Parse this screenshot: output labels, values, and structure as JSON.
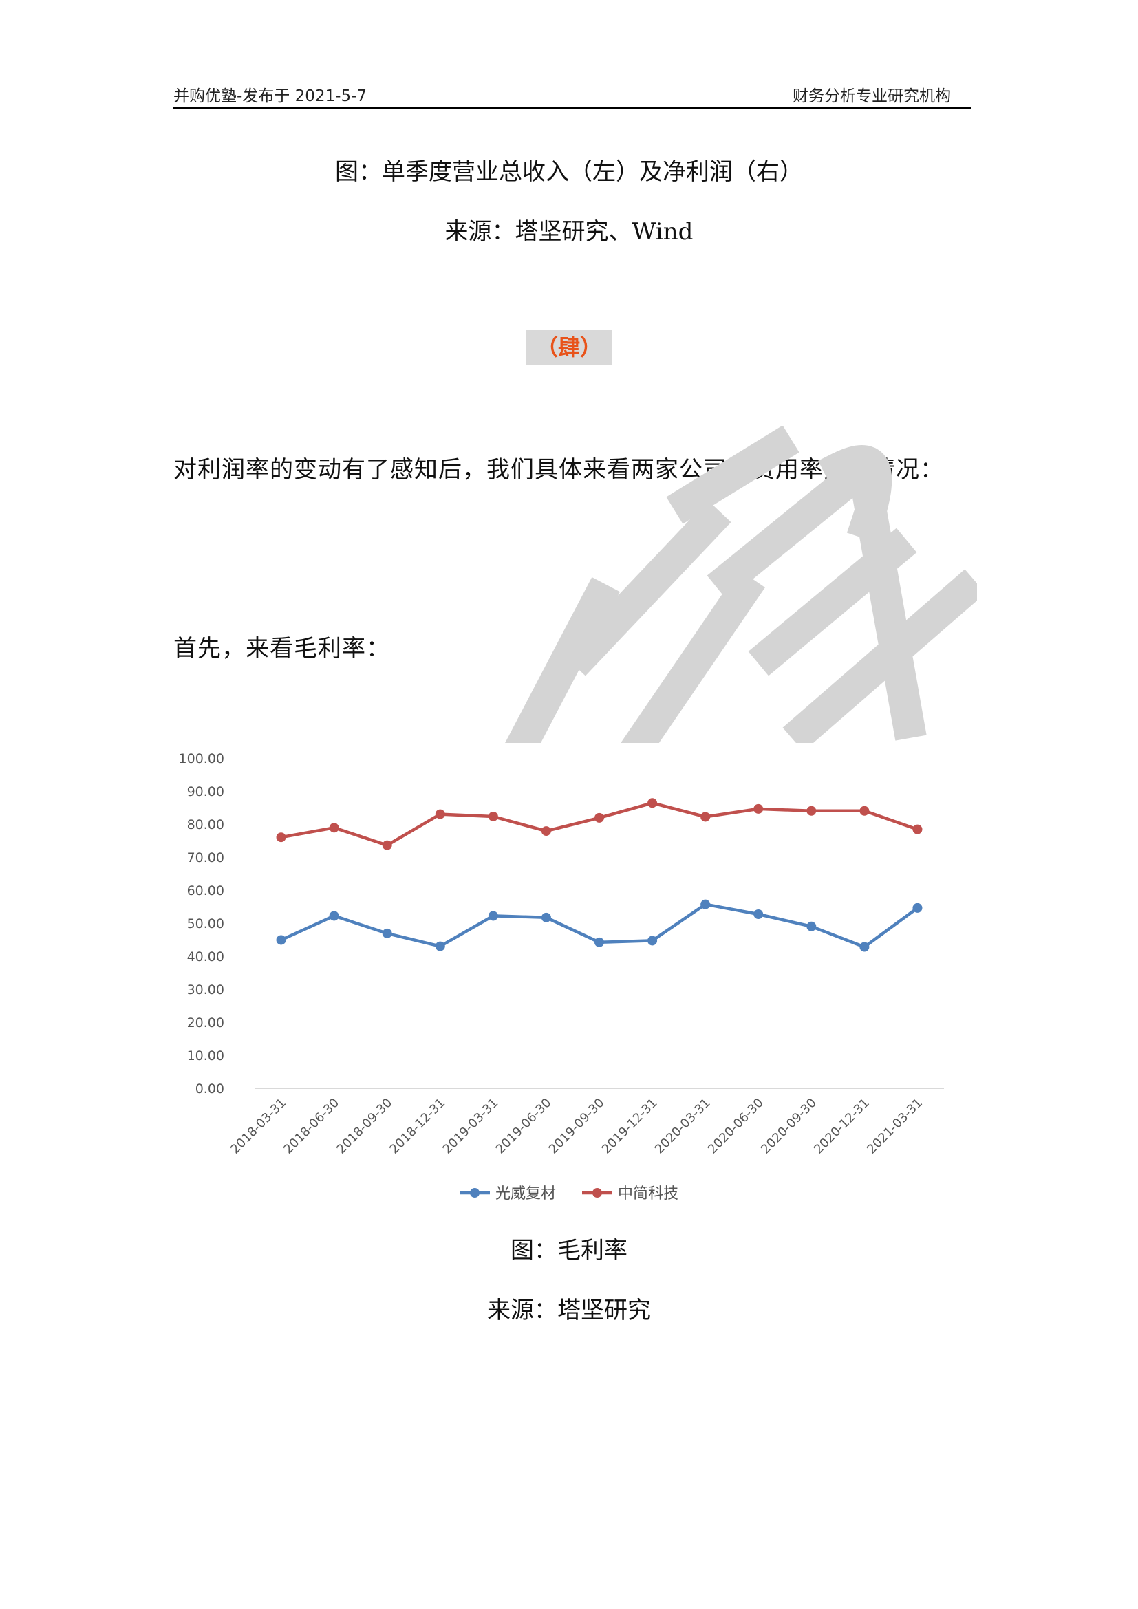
{
  "header": {
    "left": "并购优塾-发布于 2021-5-7",
    "right": "财务分析专业研究机构"
  },
  "figure1": {
    "caption": "图：单季度营业总收入（左）及净利润（右）",
    "source": "来源：塔坚研究、Wind"
  },
  "section_tag": "（肆）",
  "paragraphs": [
    "对利润率的变动有了感知后，我们具体来看两家公司的费用率变动情况：",
    "首先，来看毛利率："
  ],
  "chart_data": {
    "type": "line",
    "categories": [
      "2018-03-31",
      "2018-06-30",
      "2018-09-30",
      "2018-12-31",
      "2019-03-31",
      "2019-06-30",
      "2019-09-30",
      "2019-12-31",
      "2020-03-31",
      "2020-06-30",
      "2020-09-30",
      "2020-12-31",
      "2021-03-31"
    ],
    "series": [
      {
        "name": "光威复材",
        "color": "#4f81bd",
        "values": [
          44.9,
          52.2,
          46.9,
          43.0,
          52.2,
          51.7,
          44.2,
          44.7,
          55.7,
          52.7,
          49.0,
          42.8,
          54.6
        ]
      },
      {
        "name": "中简科技",
        "color": "#c0504d",
        "values": [
          76.0,
          78.9,
          73.6,
          83.0,
          82.3,
          77.9,
          81.9,
          86.4,
          82.2,
          84.6,
          84.0,
          84.0,
          78.4
        ]
      }
    ],
    "y_ticks": [
      "0.00",
      "10.00",
      "20.00",
      "30.00",
      "40.00",
      "50.00",
      "60.00",
      "70.00",
      "80.00",
      "90.00",
      "100.00"
    ],
    "ylim": [
      0,
      100
    ],
    "grid": "horizontal-baseline-only",
    "legend_position": "bottom",
    "title": "",
    "xlabel": "",
    "ylabel": ""
  },
  "figure2": {
    "caption": "图：毛利率",
    "source": "来源：塔坚研究"
  },
  "watermark_text": "并购优塾"
}
